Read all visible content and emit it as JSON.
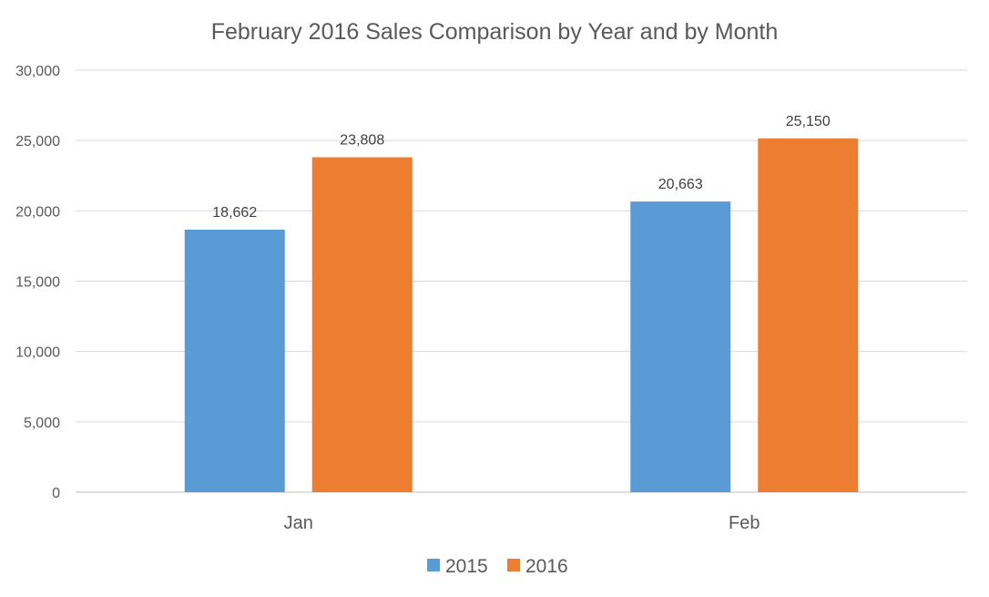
{
  "chart_data": {
    "type": "bar",
    "title": "February 2016 Sales Comparison by Year and by Month",
    "xlabel": "",
    "ylabel": "",
    "categories": [
      "Jan",
      "Feb"
    ],
    "series": [
      {
        "name": "2015",
        "values": [
          18662,
          20663
        ],
        "labels": [
          "18,662",
          "20,663"
        ],
        "color": "#5b9bd5"
      },
      {
        "name": "2016",
        "values": [
          23808,
          25150
        ],
        "labels": [
          "23,808",
          "25,150"
        ],
        "color": "#ed7d31"
      }
    ],
    "ylim": [
      0,
      30000
    ],
    "yticks": [
      0,
      5000,
      10000,
      15000,
      20000,
      25000,
      30000
    ],
    "ytick_labels": [
      "0",
      "5,000",
      "10,000",
      "15,000",
      "20,000",
      "25,000",
      "30,000"
    ],
    "grid": true,
    "legend": "bottom",
    "gridline_color": "#d9d9d9",
    "axis_color": "#bfbfbf"
  }
}
